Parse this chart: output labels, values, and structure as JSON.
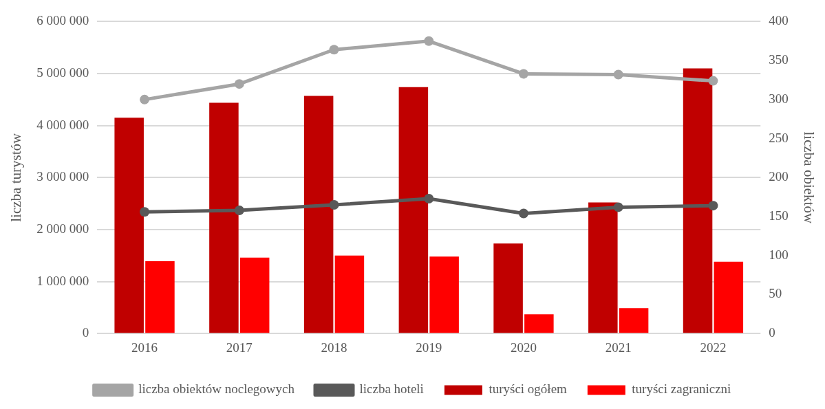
{
  "chart_data": {
    "type": "bar",
    "categories": [
      "2016",
      "2017",
      "2018",
      "2019",
      "2020",
      "2021",
      "2022"
    ],
    "ylabel": "liczba turystów",
    "y2label": "liczba obiektów",
    "series": [
      {
        "name": "turyści ogółem",
        "color": "#c00000",
        "values": [
          4150000,
          4440000,
          4570000,
          4740000,
          1730000,
          2520000,
          5100000
        ]
      },
      {
        "name": "turyści zagraniczni",
        "color": "#ff0000",
        "values": [
          1390000,
          1460000,
          1500000,
          1480000,
          370000,
          490000,
          1380000
        ]
      },
      {
        "name": "liczba obiektów noclegowych",
        "type": "line",
        "axis": "y2",
        "color": "#a5a5a5",
        "values": [
          300,
          320,
          364,
          375,
          333,
          332,
          324
        ]
      },
      {
        "name": "liczba hoteli",
        "type": "line",
        "axis": "y2",
        "color": "#595959",
        "values": [
          156,
          158,
          165,
          173,
          154,
          162,
          164
        ]
      }
    ],
    "ylim": [
      0,
      6000000
    ],
    "yticks": [
      {
        "value": 0,
        "label": "0"
      },
      {
        "value": 1000000,
        "label": "1 000 000"
      },
      {
        "value": 2000000,
        "label": "2 000 000"
      },
      {
        "value": 3000000,
        "label": "3 000 000"
      },
      {
        "value": 4000000,
        "label": "4 000 000"
      },
      {
        "value": 5000000,
        "label": "5 000 000"
      },
      {
        "value": 6000000,
        "label": "6 000 000"
      }
    ],
    "y2lim": [
      0,
      400
    ],
    "y2ticks": [
      0,
      50,
      100,
      150,
      200,
      250,
      300,
      350,
      400
    ],
    "grid": "y",
    "legend": "bottom",
    "marker": "circle",
    "line_style": "solid"
  }
}
